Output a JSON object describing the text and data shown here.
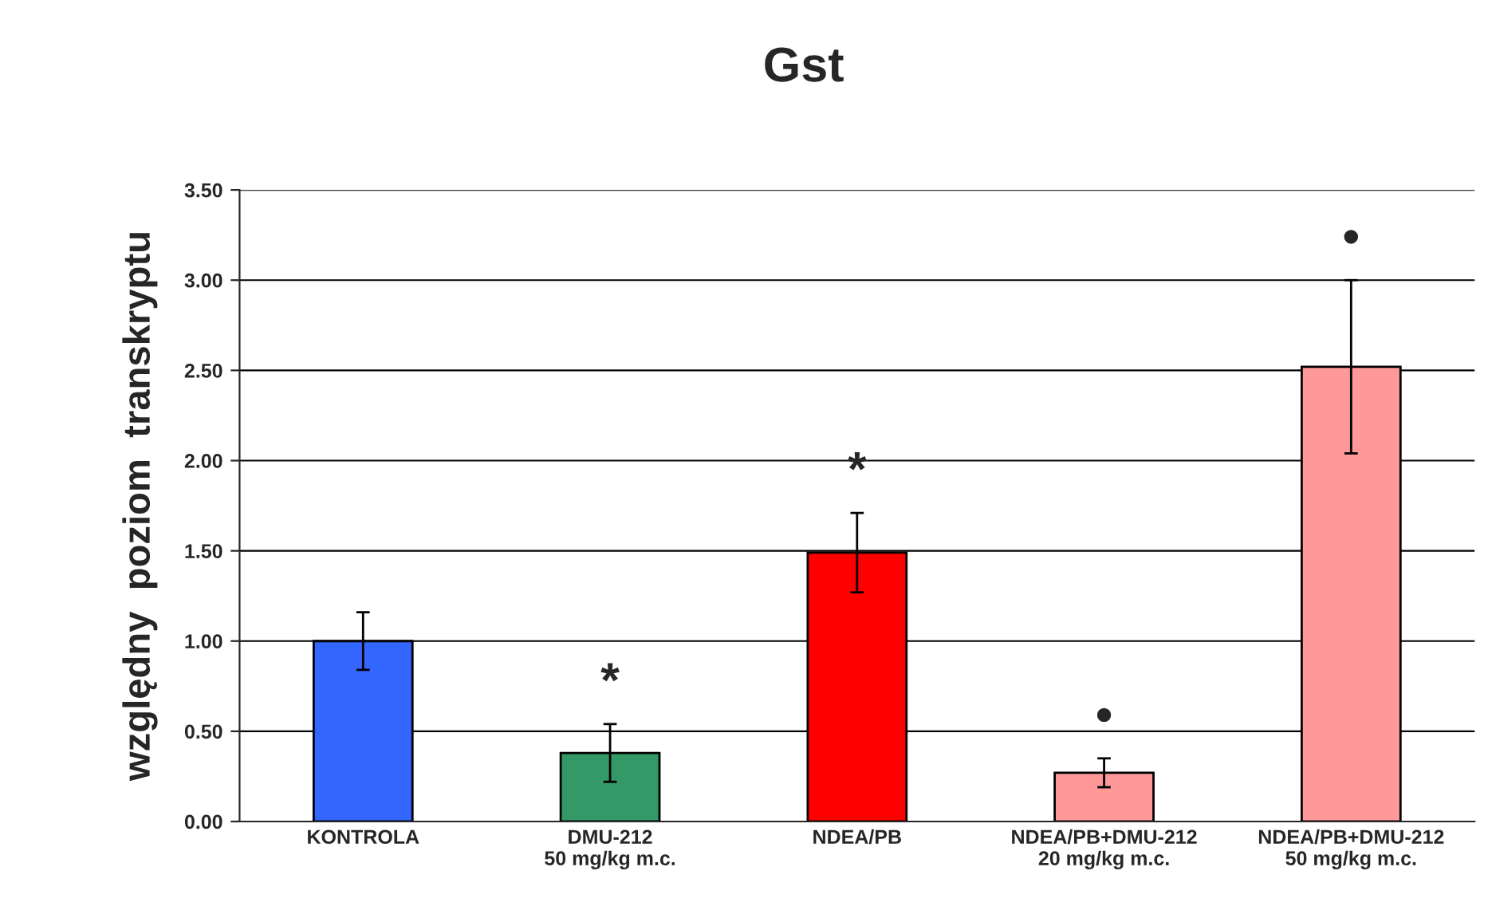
{
  "chart_data": {
    "type": "bar",
    "title": "Gst",
    "ylabel": "względny  poziom  transkryptu",
    "categories": [
      "KONTROLA",
      "DMU-212\n50 mg/kg m.c.",
      "NDEA/PB",
      "NDEA/PB+DMU-212\n20 mg/kg m.c.",
      "NDEA/PB+DMU-212\n50 mg/kg m.c."
    ],
    "values": [
      1.0,
      0.38,
      1.49,
      0.27,
      2.52
    ],
    "errors": [
      0.16,
      0.16,
      0.22,
      0.08,
      0.48
    ],
    "colors": [
      "#3366ff",
      "#339966",
      "#ff0000",
      "#ff9999",
      "#ff9999"
    ],
    "ylim": [
      0,
      3.5
    ],
    "yticks": [
      {
        "value": 0,
        "label": "0.00"
      },
      {
        "value": 0.5,
        "label": "0.50"
      },
      {
        "value": 1,
        "label": "1.00"
      },
      {
        "value": 1.5,
        "label": "1.50"
      },
      {
        "value": 2,
        "label": "2.00"
      },
      {
        "value": 2.5,
        "label": "2.50"
      },
      {
        "value": 3,
        "label": "3.00"
      },
      {
        "value": 3.5,
        "label": "3.50"
      }
    ],
    "grid": "y",
    "value_labels": [
      null,
      "*",
      "*",
      "•",
      "•"
    ]
  }
}
